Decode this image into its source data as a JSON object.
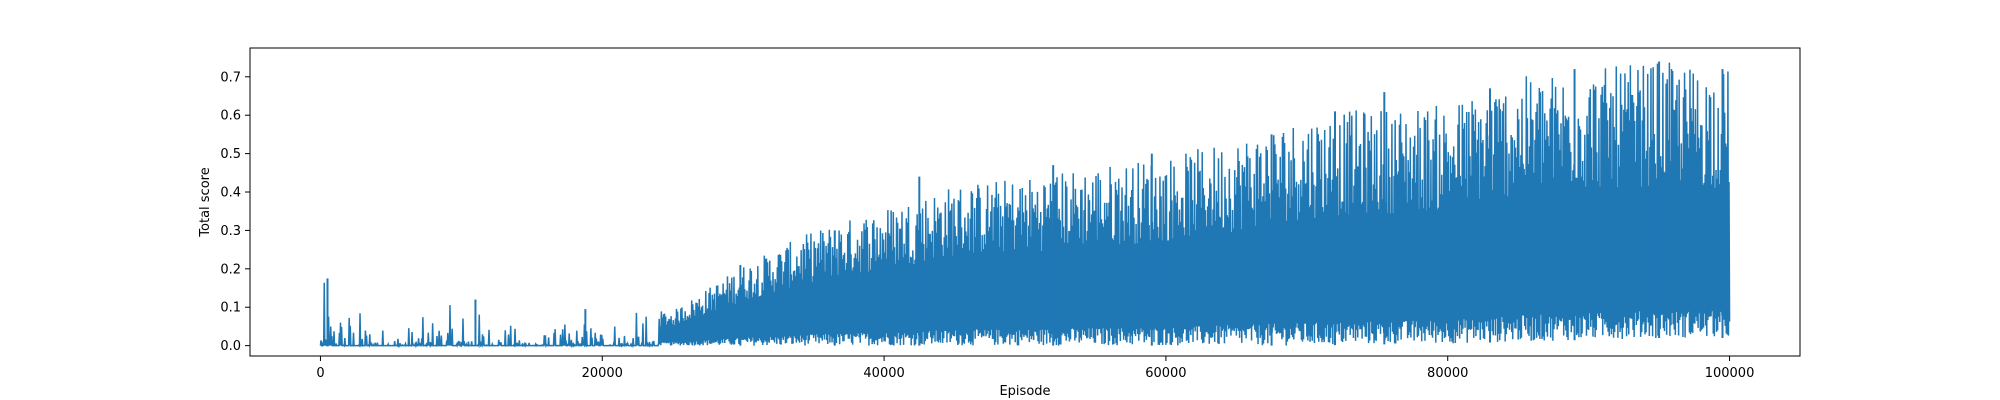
{
  "colors": {
    "series": "#1f77b4",
    "axis": "#000000",
    "background": "#ffffff"
  },
  "chart_data": {
    "type": "line",
    "title": "",
    "xlabel": "Episode",
    "ylabel": "Total score",
    "xlim": [
      -5000,
      105000
    ],
    "ylim": [
      -0.027,
      0.775
    ],
    "grid": false,
    "x_ticks": [
      0,
      20000,
      40000,
      60000,
      80000,
      100000
    ],
    "x_tick_labels": [
      "0",
      "20000",
      "40000",
      "60000",
      "80000",
      "100000"
    ],
    "y_ticks": [
      0.0,
      0.1,
      0.2,
      0.3,
      0.4,
      0.5,
      0.6,
      0.7
    ],
    "y_tick_labels": [
      "0.0",
      "0.1",
      "0.2",
      "0.3",
      "0.4",
      "0.5",
      "0.6",
      "0.7"
    ],
    "series": [
      {
        "x": [
          0,
          5000,
          10000,
          15000,
          20000,
          25000,
          30000,
          35000,
          40000,
          45000,
          50000,
          55000,
          60000,
          65000,
          70000,
          75000,
          80000,
          85000,
          90000,
          95000,
          100000
        ],
        "high": [
          0.175,
          0.04,
          0.12,
          0.03,
          0.09,
          0.09,
          0.21,
          0.3,
          0.36,
          0.42,
          0.44,
          0.47,
          0.49,
          0.54,
          0.6,
          0.62,
          0.63,
          0.7,
          0.72,
          0.74,
          0.72
        ],
        "low": [
          0,
          0,
          0,
          0,
          0,
          0,
          0,
          0,
          0,
          0,
          0,
          0,
          0,
          0,
          0,
          0.003,
          0.005,
          0.01,
          0.015,
          0.02,
          0.02
        ]
      }
    ],
    "peaks": [
      {
        "x": 500,
        "y": 0.175
      },
      {
        "x": 11000,
        "y": 0.12
      },
      {
        "x": 18800,
        "y": 0.095
      },
      {
        "x": 29800,
        "y": 0.21
      },
      {
        "x": 36500,
        "y": 0.3
      },
      {
        "x": 42500,
        "y": 0.44
      },
      {
        "x": 52000,
        "y": 0.47
      },
      {
        "x": 59000,
        "y": 0.5
      },
      {
        "x": 67500,
        "y": 0.55
      },
      {
        "x": 72000,
        "y": 0.61
      },
      {
        "x": 75500,
        "y": 0.66
      },
      {
        "x": 83000,
        "y": 0.67
      },
      {
        "x": 89000,
        "y": 0.72
      },
      {
        "x": 95000,
        "y": 0.74
      },
      {
        "x": 99500,
        "y": 0.72
      }
    ]
  }
}
